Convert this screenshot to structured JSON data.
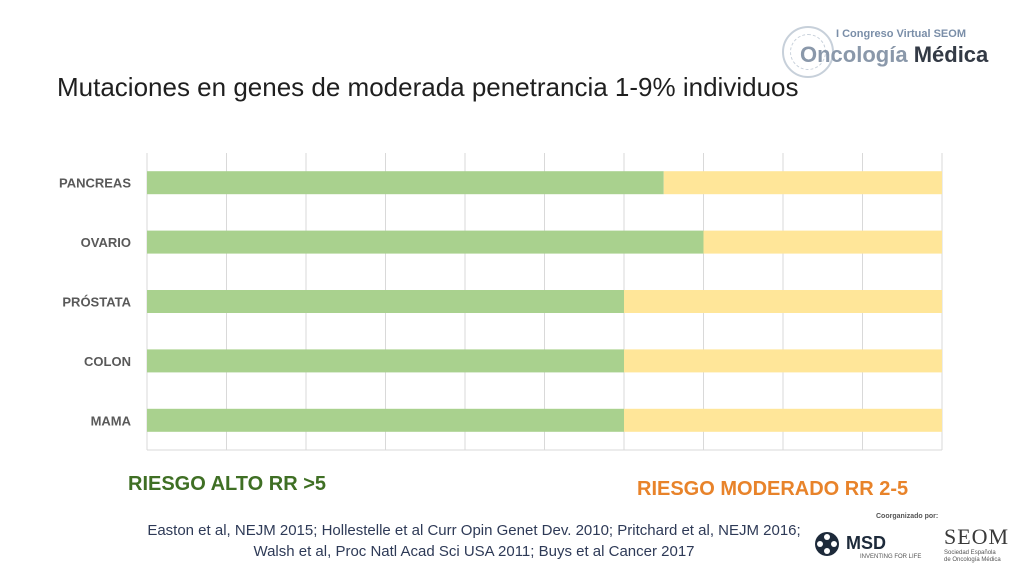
{
  "header": {
    "congress": "I Congreso Virtual SEOM",
    "brand_part1": "Oncología",
    "brand_part2": "Médica",
    "title": "Mutaciones en genes de moderada penetrancia 1-9% individuos"
  },
  "colors": {
    "high": "#a9d18e",
    "moderate": "#ffe699",
    "grid": "#d9d9d9"
  },
  "chart_data": {
    "type": "bar",
    "orientation": "horizontal",
    "stacked": true,
    "categories": [
      "PANCREAS",
      "OVARIO",
      "PRÓSTATA",
      "COLON",
      "MAMA"
    ],
    "series": [
      {
        "name": "RIESGO ALTO RR >5",
        "values": [
          65,
          70,
          60,
          60,
          60
        ]
      },
      {
        "name": "RIESGO MODERADO RR 2-5",
        "values": [
          35,
          30,
          40,
          40,
          40
        ]
      }
    ],
    "xlim": [
      0,
      100
    ],
    "grid": true,
    "title": "",
    "xlabel": "",
    "ylabel": ""
  },
  "legend": {
    "high": "RIESGO ALTO RR >5",
    "moderate": "RIESGO MODERADO RR 2-5"
  },
  "references": {
    "line1": "Easton et al, NEJM 2015; Hollestelle et al Curr Opin Genet Dev. 2010; Pritchard et al, NEJM 2016;",
    "line2": "Walsh et al, Proc Natl Acad Sci USA 2011; Buys et al Cancer 2017"
  },
  "footer": {
    "coorganized": "Coorganizado por:",
    "msd": "MSD",
    "msd_tagline": "INVENTING FOR LIFE",
    "seom": "SEOM",
    "seom_sub1": "Sociedad Española",
    "seom_sub2": "de Oncología Médica"
  }
}
